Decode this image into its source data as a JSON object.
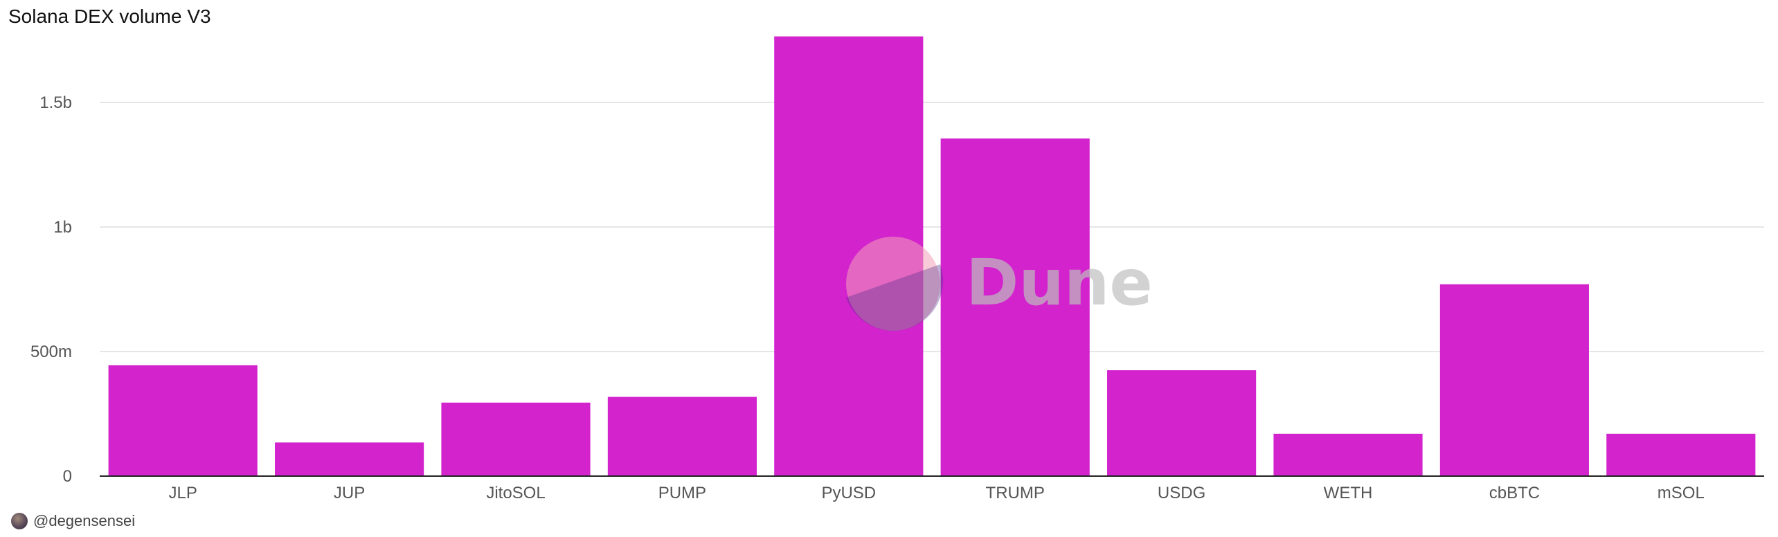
{
  "chart_data": {
    "type": "bar",
    "title": "Solana DEX volume V3",
    "categories": [
      "JLP",
      "JUP",
      "JitoSOL",
      "PUMP",
      "PyUSD",
      "TRUMP",
      "USDG",
      "WETH",
      "cbBTC",
      "mSOL"
    ],
    "values": [
      445000000,
      135000000,
      295000000,
      318000000,
      1765000000,
      1355000000,
      425000000,
      170000000,
      770000000,
      170000000
    ],
    "ylim": [
      0,
      1800000000
    ],
    "yticks": [
      {
        "value": 0,
        "label": "0"
      },
      {
        "value": 500000000,
        "label": "500m"
      },
      {
        "value": 1000000000,
        "label": "1b"
      },
      {
        "value": 1500000000,
        "label": "1.5b"
      }
    ],
    "xlabel": "",
    "ylabel": "",
    "grid": true,
    "bar_color": "#d223cc"
  },
  "watermark": {
    "text": "Dune"
  },
  "footer": {
    "author": "@degensensei"
  }
}
